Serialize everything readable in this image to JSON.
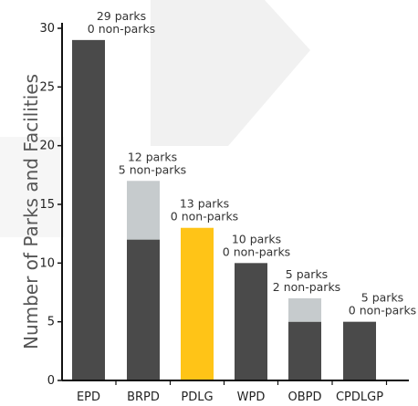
{
  "colors": {
    "parks": "#4a4a4a",
    "non_parks": "#c6cbcd",
    "highlight": "#ffc417",
    "axis": "#111111",
    "watermark": "#f1f1f1"
  },
  "chart_data": {
    "type": "bar",
    "stacked": true,
    "title": "",
    "xlabel": "",
    "ylabel": "Number of Parks and Facilities",
    "ylim": [
      0,
      30
    ],
    "yticks": [
      0,
      5,
      10,
      15,
      20,
      25,
      30
    ],
    "grid": false,
    "highlight_category": "PDLG",
    "categories": [
      "EPD",
      "BRPD",
      "PDLG",
      "WPD",
      "OBPD",
      "CPDLGP"
    ],
    "series": [
      {
        "values": [
          29,
          12,
          13,
          10,
          5,
          5
        ]
      },
      {
        "values": [
          0,
          5,
          0,
          0,
          2,
          0
        ]
      }
    ],
    "data_labels": [
      {
        "parks": "29 parks",
        "non_parks": "0 non-parks"
      },
      {
        "parks": "12 parks",
        "non_parks": "5 non-parks"
      },
      {
        "parks": "13 parks",
        "non_parks": "0 non-parks"
      },
      {
        "parks": "10 parks",
        "non_parks": "0 non-parks"
      },
      {
        "parks": "5 parks",
        "non_parks": "2 non-parks"
      },
      {
        "parks": "5 parks",
        "non_parks": "0 non-parks"
      }
    ]
  }
}
